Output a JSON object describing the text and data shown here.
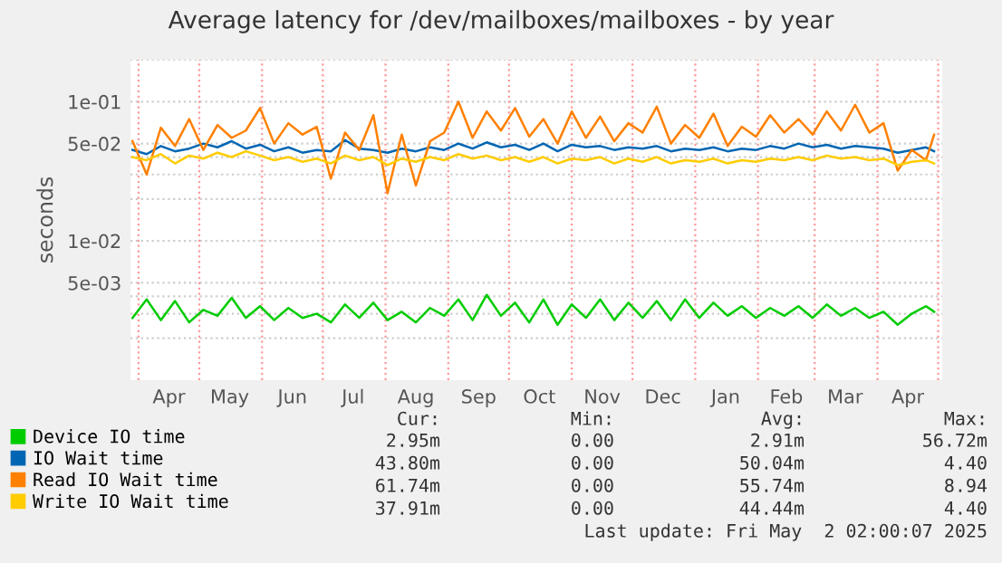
{
  "chart_data": {
    "type": "line",
    "title": "Average latency for /dev/mailboxes/mailboxes - by year",
    "ylabel": "seconds",
    "x": [
      "2024-03-29",
      "2024-04-05",
      "2024-04-12",
      "2024-04-19",
      "2024-04-26",
      "2024-05-03",
      "2024-05-10",
      "2024-05-17",
      "2024-05-24",
      "2024-05-31",
      "2024-06-07",
      "2024-06-14",
      "2024-06-21",
      "2024-06-28",
      "2024-07-05",
      "2024-07-12",
      "2024-07-19",
      "2024-07-26",
      "2024-08-02",
      "2024-08-09",
      "2024-08-16",
      "2024-08-23",
      "2024-08-30",
      "2024-09-06",
      "2024-09-13",
      "2024-09-20",
      "2024-09-27",
      "2024-10-04",
      "2024-10-11",
      "2024-10-18",
      "2024-10-25",
      "2024-11-01",
      "2024-11-08",
      "2024-11-15",
      "2024-11-22",
      "2024-11-29",
      "2024-12-06",
      "2024-12-13",
      "2024-12-20",
      "2024-12-27",
      "2025-01-03",
      "2025-01-10",
      "2025-01-17",
      "2025-01-24",
      "2025-01-31",
      "2025-02-07",
      "2025-02-14",
      "2025-02-21",
      "2025-02-28",
      "2025-03-07",
      "2025-03-14",
      "2025-03-21",
      "2025-03-28",
      "2025-04-04",
      "2025-04-11",
      "2025-04-18",
      "2025-04-25",
      "2025-04-29"
    ],
    "series": [
      {
        "name": "Device IO time",
        "color": "#00cc00",
        "values": [
          0.0028,
          0.0038,
          0.0027,
          0.0037,
          0.0026,
          0.0032,
          0.0029,
          0.0039,
          0.0028,
          0.0034,
          0.0027,
          0.0033,
          0.0028,
          0.003,
          0.0026,
          0.0035,
          0.0028,
          0.0036,
          0.0027,
          0.0031,
          0.0026,
          0.0033,
          0.0029,
          0.0038,
          0.0027,
          0.0041,
          0.0029,
          0.0036,
          0.0026,
          0.0038,
          0.0025,
          0.0035,
          0.0028,
          0.0038,
          0.0027,
          0.0036,
          0.0028,
          0.0037,
          0.0027,
          0.0038,
          0.0028,
          0.0036,
          0.0029,
          0.0034,
          0.0028,
          0.0033,
          0.0029,
          0.0034,
          0.0028,
          0.0035,
          0.0029,
          0.0033,
          0.0028,
          0.0031,
          0.0025,
          0.003,
          0.0034,
          0.0031
        ]
      },
      {
        "name": "IO Wait time",
        "color": "#0066b3",
        "values": [
          0.045,
          0.042,
          0.048,
          0.044,
          0.046,
          0.05,
          0.047,
          0.052,
          0.046,
          0.049,
          0.044,
          0.047,
          0.043,
          0.045,
          0.044,
          0.053,
          0.046,
          0.045,
          0.043,
          0.046,
          0.044,
          0.047,
          0.045,
          0.05,
          0.046,
          0.051,
          0.047,
          0.049,
          0.045,
          0.05,
          0.044,
          0.049,
          0.047,
          0.048,
          0.045,
          0.047,
          0.046,
          0.048,
          0.044,
          0.046,
          0.045,
          0.047,
          0.044,
          0.046,
          0.045,
          0.048,
          0.046,
          0.05,
          0.047,
          0.049,
          0.046,
          0.048,
          0.047,
          0.046,
          0.043,
          0.045,
          0.047,
          0.044
        ]
      },
      {
        "name": "Read IO Wait time",
        "color": "#ff8000",
        "values": [
          0.052,
          0.03,
          0.065,
          0.048,
          0.075,
          0.045,
          0.068,
          0.055,
          0.062,
          0.09,
          0.05,
          0.07,
          0.058,
          0.066,
          0.028,
          0.06,
          0.045,
          0.08,
          0.022,
          0.058,
          0.025,
          0.052,
          0.06,
          0.1,
          0.055,
          0.085,
          0.062,
          0.09,
          0.056,
          0.075,
          0.05,
          0.085,
          0.055,
          0.078,
          0.052,
          0.07,
          0.06,
          0.092,
          0.05,
          0.068,
          0.055,
          0.082,
          0.048,
          0.066,
          0.056,
          0.08,
          0.06,
          0.075,
          0.058,
          0.085,
          0.062,
          0.095,
          0.06,
          0.07,
          0.032,
          0.045,
          0.038,
          0.058
        ]
      },
      {
        "name": "Write IO Wait time",
        "color": "#ffcc00",
        "values": [
          0.04,
          0.038,
          0.042,
          0.036,
          0.041,
          0.039,
          0.043,
          0.04,
          0.044,
          0.041,
          0.038,
          0.04,
          0.037,
          0.039,
          0.036,
          0.041,
          0.038,
          0.04,
          0.035,
          0.039,
          0.037,
          0.04,
          0.038,
          0.042,
          0.039,
          0.041,
          0.038,
          0.04,
          0.037,
          0.04,
          0.036,
          0.039,
          0.038,
          0.04,
          0.036,
          0.039,
          0.037,
          0.04,
          0.036,
          0.038,
          0.037,
          0.039,
          0.036,
          0.038,
          0.037,
          0.039,
          0.038,
          0.04,
          0.038,
          0.041,
          0.039,
          0.04,
          0.038,
          0.039,
          0.035,
          0.037,
          0.038,
          0.036
        ]
      }
    ],
    "log": true,
    "ylim": [
      0.001,
      0.2
    ],
    "yticks": [
      {
        "value": 0.002,
        "label": null
      },
      {
        "value": 0.003,
        "label": null
      },
      {
        "value": 0.004,
        "label": null
      },
      {
        "value": 0.005,
        "label": "5e-03"
      },
      {
        "value": 0.01,
        "label": "1e-02"
      },
      {
        "value": 0.02,
        "label": null
      },
      {
        "value": 0.03,
        "label": null
      },
      {
        "value": 0.04,
        "label": null
      },
      {
        "value": 0.05,
        "label": "5e-02"
      },
      {
        "value": 0.1,
        "label": "1e-01"
      },
      {
        "value": 0.2,
        "label": null
      }
    ],
    "xlim": [
      "2024-03-28",
      "2025-05-03"
    ],
    "xticks": [
      {
        "value": "2024-04-16",
        "label": "Apr"
      },
      {
        "value": "2024-05-16",
        "label": "May"
      },
      {
        "value": "2024-06-16",
        "label": "Jun"
      },
      {
        "value": "2024-07-16",
        "label": "Jul"
      },
      {
        "value": "2024-08-16",
        "label": "Aug"
      },
      {
        "value": "2024-09-16",
        "label": "Sep"
      },
      {
        "value": "2024-10-16",
        "label": "Oct"
      },
      {
        "value": "2024-11-16",
        "label": "Nov"
      },
      {
        "value": "2024-12-16",
        "label": "Dec"
      },
      {
        "value": "2025-01-16",
        "label": "Jan"
      },
      {
        "value": "2025-02-15",
        "label": "Feb"
      },
      {
        "value": "2025-03-16",
        "label": "Mar"
      },
      {
        "value": "2025-04-16",
        "label": "Apr"
      }
    ],
    "ref_lines": [
      {
        "axis": "x",
        "value": "2024-04-01",
        "color": "#ff9999",
        "line_style": "dotted"
      },
      {
        "axis": "x",
        "value": "2024-05-01",
        "color": "#ff9999",
        "line_style": "dotted"
      },
      {
        "axis": "x",
        "value": "2024-06-01",
        "color": "#ff9999",
        "line_style": "dotted"
      },
      {
        "axis": "x",
        "value": "2024-07-01",
        "color": "#ff9999",
        "line_style": "dotted"
      },
      {
        "axis": "x",
        "value": "2024-08-01",
        "color": "#ff9999",
        "line_style": "dotted"
      },
      {
        "axis": "x",
        "value": "2024-09-01",
        "color": "#ff9999",
        "line_style": "dotted"
      },
      {
        "axis": "x",
        "value": "2024-10-01",
        "color": "#ff9999",
        "line_style": "dotted"
      },
      {
        "axis": "x",
        "value": "2024-11-01",
        "color": "#ff9999",
        "line_style": "dotted"
      },
      {
        "axis": "x",
        "value": "2024-12-01",
        "color": "#ff9999",
        "line_style": "dotted"
      },
      {
        "axis": "x",
        "value": "2025-01-01",
        "color": "#ff9999",
        "line_style": "dotted"
      },
      {
        "axis": "x",
        "value": "2025-02-01",
        "color": "#ff9999",
        "line_style": "dotted"
      },
      {
        "axis": "x",
        "value": "2025-03-01",
        "color": "#ff9999",
        "line_style": "dotted"
      },
      {
        "axis": "x",
        "value": "2025-04-01",
        "color": "#ff9999",
        "line_style": "dotted"
      },
      {
        "axis": "x",
        "value": "2025-05-01",
        "color": "#ff9999",
        "line_style": "dotted"
      }
    ],
    "grid": "y",
    "legend": "bottom left",
    "marker": "none",
    "line_style": "solid",
    "annotations": [
      "Cur:",
      "Min:",
      "Avg:",
      "Max:",
      "2.95m",
      "0.00",
      "2.91m",
      "56.72m",
      "43.80m",
      "0.00",
      "50.04m",
      "4.40",
      "61.74m",
      "0.00",
      "55.74m",
      "8.94",
      "37.91m",
      "0.00",
      "44.44m",
      "4.40",
      "Last update: Fri May  2 02:00:07 2025"
    ]
  }
}
